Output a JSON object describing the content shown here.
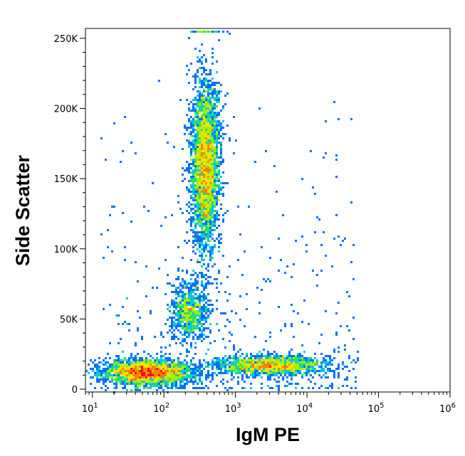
{
  "chart_data": {
    "type": "scatter",
    "xlabel": "IgM PE",
    "ylabel": "Side Scatter",
    "x_scale": "log",
    "xlim": [
      8,
      1000000
    ],
    "ylim": [
      -2000,
      257000
    ],
    "x_ticks": [
      {
        "value": 10,
        "base": "10",
        "exp": "1"
      },
      {
        "value": 100,
        "base": "10",
        "exp": "2"
      },
      {
        "value": 1000,
        "base": "10",
        "exp": "3"
      },
      {
        "value": 10000,
        "base": "10",
        "exp": "4"
      },
      {
        "value": 100000,
        "base": "10",
        "exp": "5"
      },
      {
        "value": 1000000,
        "base": "10",
        "exp": "6"
      }
    ],
    "y_ticks": [
      {
        "value": 0,
        "label": "0"
      },
      {
        "value": 50000,
        "label": "50K"
      },
      {
        "value": 100000,
        "label": "100K"
      },
      {
        "value": 150000,
        "label": "150K"
      },
      {
        "value": 200000,
        "label": "200K"
      },
      {
        "value": 250000,
        "label": "250K"
      }
    ],
    "grid": false,
    "legend": "none",
    "colormap": [
      "#0a14d2",
      "#0070ff",
      "#00c8e6",
      "#20e070",
      "#a0f000",
      "#ffe000",
      "#ff8000",
      "#ff1000"
    ],
    "populations": [
      {
        "x_center": 60,
        "x_spread_decades": 0.3,
        "y_center": 12000,
        "y_spread": 4500,
        "count": 2600,
        "peak_color": "#ff1000"
      },
      {
        "x_center": 3000,
        "x_spread_decades": 0.4,
        "y_center": 17000,
        "y_spread": 3500,
        "count": 1600,
        "peak_color": "#20e070"
      },
      {
        "x_center": 380,
        "x_spread_decades": 0.1,
        "y_center": 160000,
        "y_spread": 30000,
        "count": 3400,
        "peak_color": "#ffe000"
      },
      {
        "x_center": 230,
        "x_spread_decades": 0.13,
        "y_center": 55000,
        "y_spread": 11000,
        "count": 800,
        "peak_color": "#20e070"
      }
    ]
  }
}
